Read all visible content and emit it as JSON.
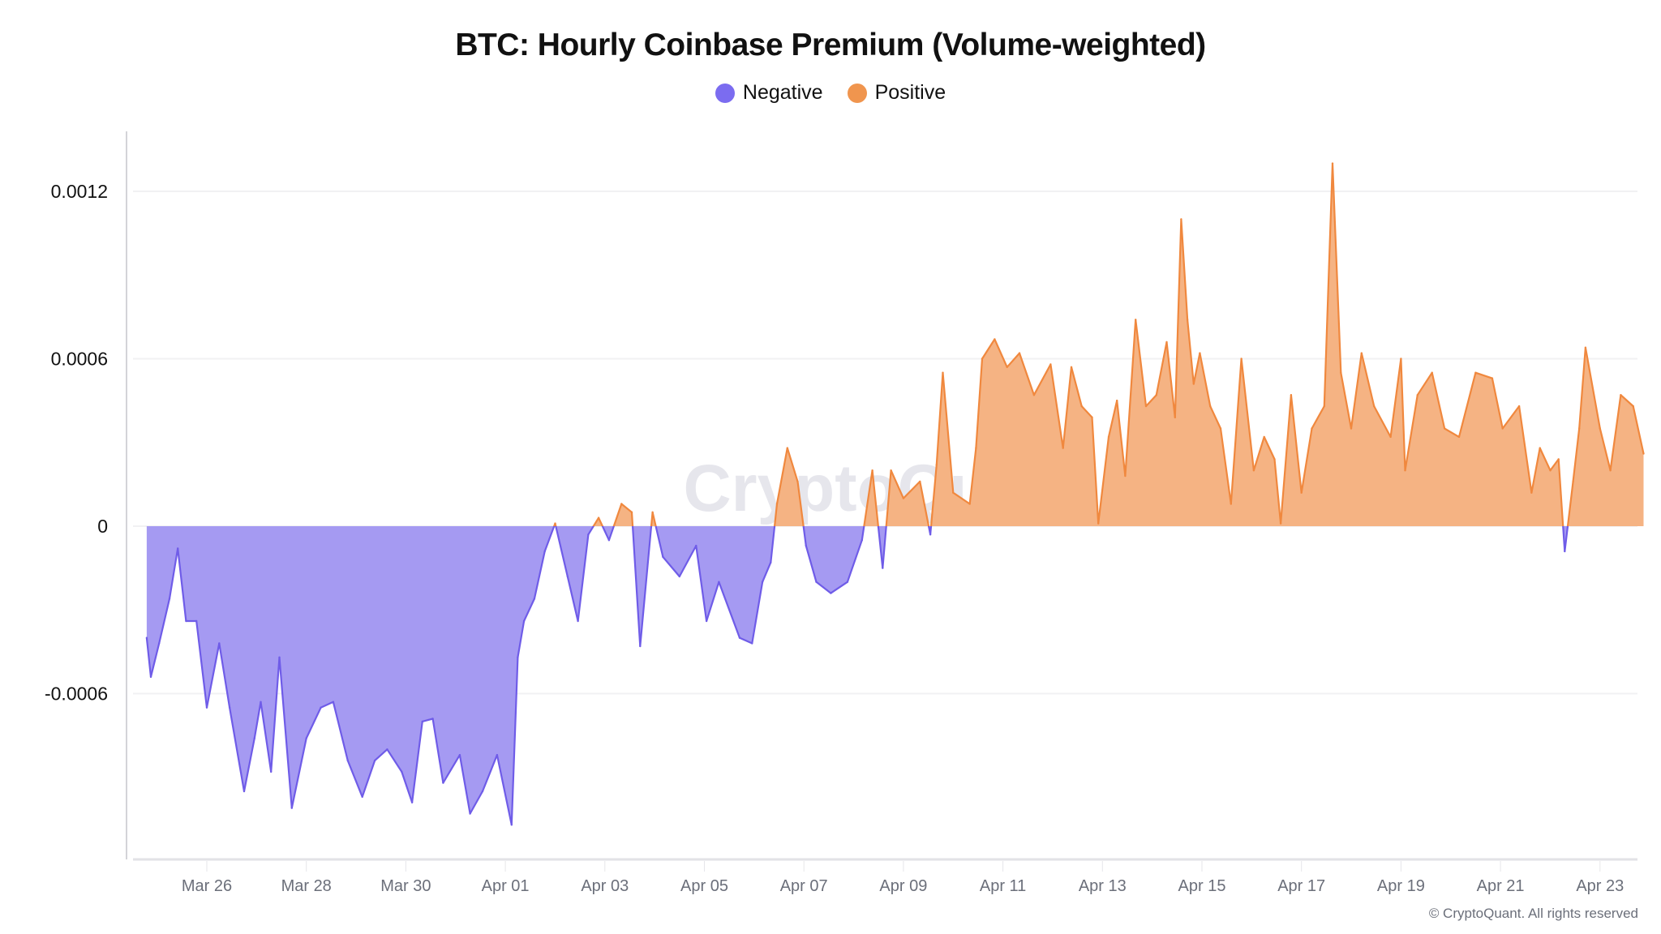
{
  "chart_data": {
    "type": "area",
    "title": "BTC: Hourly Coinbase Premium (Volume-weighted)",
    "legend": [
      {
        "name": "Negative",
        "color": "#7b6cf0"
      },
      {
        "name": "Positive",
        "color": "#f0954e"
      }
    ],
    "legend_placement": "top-center",
    "colors": {
      "negative_line": "#6f5ce8",
      "negative_fill": "#a59af2",
      "positive_line": "#f0883e",
      "positive_fill": "#f5b383"
    },
    "ylim": [
      -0.001,
      0.00135
    ],
    "yticks": [
      "0.0012",
      "0.0006",
      "0",
      "-0.0006"
    ],
    "ytick_values": [
      0.0012,
      0.0006,
      0,
      -0.0006
    ],
    "xticks": [
      "Mar 26",
      "Mar 28",
      "Mar 30",
      "Apr 01",
      "Apr 03",
      "Apr 05",
      "Apr 07",
      "Apr 09",
      "Apr 11",
      "Apr 13",
      "Apr 15",
      "Apr 17",
      "Apr 19",
      "Apr 21",
      "Apr 23"
    ],
    "grid": "horizontal",
    "watermark": "CryptoQuant",
    "points": [
      [
        "Mar 24 19:00",
        -0.0004
      ],
      [
        "Mar 24 21:00",
        -0.00054
      ],
      [
        "Mar 25 01:00",
        -0.00042
      ],
      [
        "Mar 25 06:00",
        -0.00026
      ],
      [
        "Mar 25 10:00",
        -8e-05
      ],
      [
        "Mar 25 14:00",
        -0.00034
      ],
      [
        "Mar 25 19:00",
        -0.00034
      ],
      [
        "Mar 26 00:00",
        -0.00065
      ],
      [
        "Mar 26 06:00",
        -0.00042
      ],
      [
        "Mar 26 11:00",
        -0.00065
      ],
      [
        "Mar 26 18:00",
        -0.00095
      ],
      [
        "Mar 26 23:00",
        -0.00076
      ],
      [
        "Mar 27 02:00",
        -0.00063
      ],
      [
        "Mar 27 07:00",
        -0.00088
      ],
      [
        "Mar 27 11:00",
        -0.00047
      ],
      [
        "Mar 27 17:00",
        -0.00101
      ],
      [
        "Mar 28 00:00",
        -0.00076
      ],
      [
        "Mar 28 07:00",
        -0.00065
      ],
      [
        "Mar 28 13:00",
        -0.00063
      ],
      [
        "Mar 28 20:00",
        -0.00084
      ],
      [
        "Mar 29 03:00",
        -0.00097
      ],
      [
        "Mar 29 09:00",
        -0.00084
      ],
      [
        "Mar 29 15:00",
        -0.0008
      ],
      [
        "Mar 29 22:00",
        -0.00088
      ],
      [
        "Mar 30 03:00",
        -0.00099
      ],
      [
        "Mar 30 08:00",
        -0.0007
      ],
      [
        "Mar 30 13:00",
        -0.00069
      ],
      [
        "Mar 30 18:00",
        -0.00092
      ],
      [
        "Mar 31 02:00",
        -0.00082
      ],
      [
        "Mar 31 07:00",
        -0.00103
      ],
      [
        "Mar 31 13:00",
        -0.00095
      ],
      [
        "Mar 31 20:00",
        -0.00082
      ],
      [
        "Apr 01 03:00",
        -0.00107
      ],
      [
        "Apr 01 06:00",
        -0.00047
      ],
      [
        "Apr 01 09:00",
        -0.00034
      ],
      [
        "Apr 01 14:00",
        -0.00026
      ],
      [
        "Apr 01 19:00",
        -9e-05
      ],
      [
        "Apr 02 00:00",
        1e-05
      ],
      [
        "Apr 02 06:00",
        -0.00018
      ],
      [
        "Apr 02 11:00",
        -0.00034
      ],
      [
        "Apr 02 16:00",
        -3e-05
      ],
      [
        "Apr 02 21:00",
        3e-05
      ],
      [
        "Apr 03 02:00",
        -5e-05
      ],
      [
        "Apr 03 08:00",
        8e-05
      ],
      [
        "Apr 03 13:00",
        5e-05
      ],
      [
        "Apr 03 17:00",
        -0.00043
      ],
      [
        "Apr 03 23:00",
        5e-05
      ],
      [
        "Apr 04 04:00",
        -0.00011
      ],
      [
        "Apr 04 12:00",
        -0.00018
      ],
      [
        "Apr 04 20:00",
        -7e-05
      ],
      [
        "Apr 05 01:00",
        -0.00034
      ],
      [
        "Apr 05 07:00",
        -0.0002
      ],
      [
        "Apr 05 17:00",
        -0.0004
      ],
      [
        "Apr 05 23:00",
        -0.00042
      ],
      [
        "Apr 06 04:00",
        -0.0002
      ],
      [
        "Apr 06 08:00",
        -0.00013
      ],
      [
        "Apr 06 11:00",
        8e-05
      ],
      [
        "Apr 06 16:00",
        0.00028
      ],
      [
        "Apr 06 21:00",
        0.00016
      ],
      [
        "Apr 07 01:00",
        -7e-05
      ],
      [
        "Apr 07 06:00",
        -0.0002
      ],
      [
        "Apr 07 13:00",
        -0.00024
      ],
      [
        "Apr 07 21:00",
        -0.0002
      ],
      [
        "Apr 08 04:00",
        -5e-05
      ],
      [
        "Apr 08 09:00",
        0.0002
      ],
      [
        "Apr 08 14:00",
        -0.00015
      ],
      [
        "Apr 08 18:00",
        0.0002
      ],
      [
        "Apr 09 00:00",
        0.0001
      ],
      [
        "Apr 09 08:00",
        0.00016
      ],
      [
        "Apr 09 13:00",
        -3e-05
      ],
      [
        "Apr 09 16:00",
        0.00022
      ],
      [
        "Apr 09 19:00",
        0.00055
      ],
      [
        "Apr 10 00:00",
        0.00012
      ],
      [
        "Apr 10 08:00",
        8e-05
      ],
      [
        "Apr 10 11:00",
        0.00028
      ],
      [
        "Apr 10 14:00",
        0.0006
      ],
      [
        "Apr 10 20:00",
        0.00067
      ],
      [
        "Apr 11 02:00",
        0.00057
      ],
      [
        "Apr 11 08:00",
        0.00062
      ],
      [
        "Apr 11 15:00",
        0.00047
      ],
      [
        "Apr 11 23:00",
        0.00058
      ],
      [
        "Apr 12 05:00",
        0.00028
      ],
      [
        "Apr 12 09:00",
        0.00057
      ],
      [
        "Apr 12 14:00",
        0.00043
      ],
      [
        "Apr 12 19:00",
        0.00039
      ],
      [
        "Apr 12 22:00",
        1e-05
      ],
      [
        "Apr 13 03:00",
        0.00032
      ],
      [
        "Apr 13 07:00",
        0.00045
      ],
      [
        "Apr 13 11:00",
        0.00018
      ],
      [
        "Apr 13 16:00",
        0.00074
      ],
      [
        "Apr 13 21:00",
        0.00043
      ],
      [
        "Apr 14 02:00",
        0.00047
      ],
      [
        "Apr 14 07:00",
        0.00066
      ],
      [
        "Apr 14 11:00",
        0.00039
      ],
      [
        "Apr 14 14:00",
        0.0011
      ],
      [
        "Apr 14 17:00",
        0.00074
      ],
      [
        "Apr 14 20:00",
        0.00051
      ],
      [
        "Apr 14 23:00",
        0.00062
      ],
      [
        "Apr 15 04:00",
        0.00043
      ],
      [
        "Apr 15 09:00",
        0.00035
      ],
      [
        "Apr 15 14:00",
        8e-05
      ],
      [
        "Apr 15 19:00",
        0.0006
      ],
      [
        "Apr 16 01:00",
        0.0002
      ],
      [
        "Apr 16 06:00",
        0.00032
      ],
      [
        "Apr 16 11:00",
        0.00024
      ],
      [
        "Apr 16 14:00",
        1e-05
      ],
      [
        "Apr 16 19:00",
        0.00047
      ],
      [
        "Apr 17 00:00",
        0.00012
      ],
      [
        "Apr 17 05:00",
        0.00035
      ],
      [
        "Apr 17 11:00",
        0.00043
      ],
      [
        "Apr 17 15:00",
        0.0013
      ],
      [
        "Apr 17 19:00",
        0.00055
      ],
      [
        "Apr 18 00:00",
        0.00035
      ],
      [
        "Apr 18 05:00",
        0.00062
      ],
      [
        "Apr 18 11:00",
        0.00043
      ],
      [
        "Apr 18 19:00",
        0.00032
      ],
      [
        "Apr 19 00:00",
        0.0006
      ],
      [
        "Apr 19 02:00",
        0.0002
      ],
      [
        "Apr 19 08:00",
        0.00047
      ],
      [
        "Apr 19 15:00",
        0.00055
      ],
      [
        "Apr 19 21:00",
        0.00035
      ],
      [
        "Apr 20 04:00",
        0.00032
      ],
      [
        "Apr 20 12:00",
        0.00055
      ],
      [
        "Apr 20 20:00",
        0.00053
      ],
      [
        "Apr 21 01:00",
        0.00035
      ],
      [
        "Apr 21 09:00",
        0.00043
      ],
      [
        "Apr 21 15:00",
        0.00012
      ],
      [
        "Apr 21 19:00",
        0.00028
      ],
      [
        "Apr 22 00:00",
        0.0002
      ],
      [
        "Apr 22 04:00",
        0.00024
      ],
      [
        "Apr 22 07:00",
        -9e-05
      ],
      [
        "Apr 22 11:00",
        0.00016
      ],
      [
        "Apr 22 14:00",
        0.00035
      ],
      [
        "Apr 22 17:00",
        0.00064
      ],
      [
        "Apr 23 00:00",
        0.00035
      ],
      [
        "Apr 23 05:00",
        0.0002
      ],
      [
        "Apr 23 10:00",
        0.00047
      ],
      [
        "Apr 23 16:00",
        0.00043
      ],
      [
        "Apr 23 21:00",
        0.00026
      ]
    ]
  },
  "footer": {
    "copyright": "© CryptoQuant. All rights reserved"
  }
}
